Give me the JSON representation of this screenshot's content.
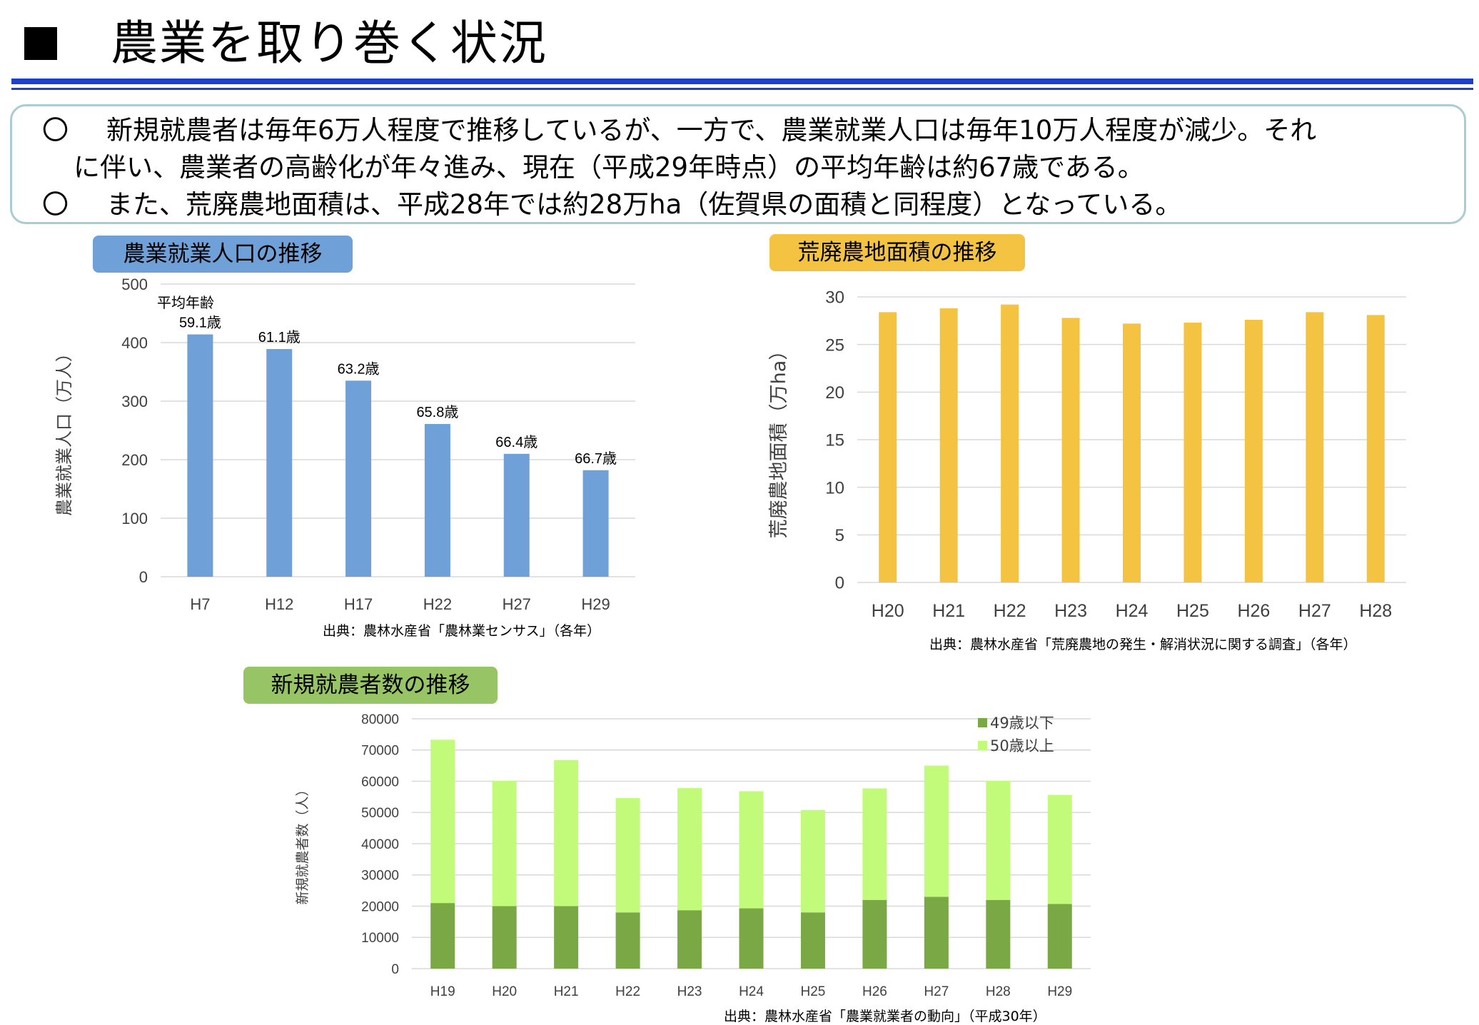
{
  "page": {
    "title": "農業を取り巻く状況",
    "bullets": [
      {
        "marker": "〇",
        "line1": "新規就農者は毎年6万人程度で推移しているが、一方で、農業就業人口は毎年10万人程度が減少。それ",
        "line2": "に伴い、農業者の高齢化が年々進み、現在（平成29年時点）の平均年齢は約67歳である。"
      },
      {
        "marker": "〇",
        "line1": "また、荒廃農地面積は、平成28年では約28万ha（佐賀県の面積と同程度）となっている。"
      }
    ]
  },
  "colors": {
    "title_rule": "#1f3fc9",
    "summary_border": "#a9cdd0",
    "blue_bar": "#6fa0d8",
    "orange_bar": "#f5c342",
    "dark_green": "#7aa845",
    "light_green": "#c2fa7a",
    "grid": "#d9d9d9"
  },
  "chart_data": [
    {
      "type": "bar",
      "title": "農業就業人口の推移",
      "categories": [
        "H7",
        "H12",
        "H17",
        "H22",
        "H27",
        "H29"
      ],
      "values": [
        414,
        389,
        335,
        261,
        210,
        182
      ],
      "data_labels": [
        "59.1歳",
        "61.1歳",
        "63.2歳",
        "65.8歳",
        "66.4歳",
        "66.7歳"
      ],
      "annotation": "平均年齢",
      "ylabel": "農業就業人口（万人）",
      "yticks": [
        "0",
        "100",
        "200",
        "300",
        "400",
        "500"
      ],
      "ylim": [
        0,
        500
      ],
      "grid": true,
      "source": "出典：農林水産省「農林業センサス」（各年）"
    },
    {
      "type": "bar",
      "title": "荒廃農地面積の推移",
      "categories": [
        "H20",
        "H21",
        "H22",
        "H23",
        "H24",
        "H25",
        "H26",
        "H27",
        "H28"
      ],
      "values": [
        28.4,
        28.8,
        29.2,
        27.8,
        27.2,
        27.3,
        27.6,
        28.4,
        28.1
      ],
      "ylabel": "荒廃農地面積（万ha）",
      "yticks": [
        "0",
        "5",
        "10",
        "15",
        "20",
        "25",
        "30"
      ],
      "ylim": [
        0,
        30
      ],
      "grid": true,
      "source": "出典：農林水産省「荒廃農地の発生・解消状況に関する調査」（各年）"
    },
    {
      "type": "bar",
      "stacked": true,
      "title": "新規就農者数の推移",
      "categories": [
        "H19",
        "H20",
        "H21",
        "H22",
        "H23",
        "H24",
        "H25",
        "H26",
        "H27",
        "H28",
        "H29"
      ],
      "series": [
        {
          "name": "49歳以下",
          "values": [
            21000,
            20000,
            20000,
            18000,
            18700,
            19300,
            18000,
            22000,
            23000,
            22000,
            20700
          ]
        },
        {
          "name": "50歳以上",
          "values": [
            52300,
            40100,
            46800,
            36600,
            39100,
            37500,
            32800,
            35700,
            42000,
            38100,
            34900
          ]
        }
      ],
      "ylabel": "新規就農者数（人）",
      "yticks": [
        "0",
        "10000",
        "20000",
        "30000",
        "40000",
        "50000",
        "60000",
        "70000",
        "80000"
      ],
      "ylim": [
        0,
        80000
      ],
      "grid": true,
      "legend": "top-right",
      "source": "出典：農林水産省「農業就業者の動向」（平成30年）"
    }
  ]
}
